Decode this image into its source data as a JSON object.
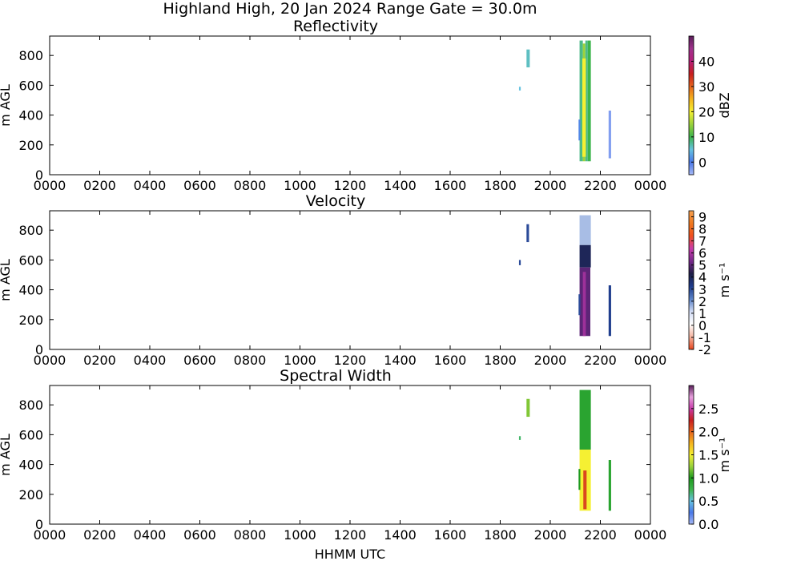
{
  "figure": {
    "title": "Highland High, 20 Jan 2024 Range Gate = 30.0m",
    "xlabel": "HHMM UTC"
  },
  "chart_data": [
    {
      "type": "heatmap",
      "title": "Reflectivity",
      "ylabel": "m AGL",
      "xlim": [
        0,
        2400
      ],
      "ylim": [
        0,
        930
      ],
      "xticks": [
        "0000",
        "0200",
        "0400",
        "0600",
        "0800",
        "1000",
        "1200",
        "1400",
        "1600",
        "1800",
        "2000",
        "2200",
        "0000"
      ],
      "yticks": [
        0,
        200,
        400,
        600,
        800
      ],
      "colorbar": {
        "label": "dBZ",
        "range": [
          -5,
          50
        ],
        "ticks": [
          0,
          10,
          20,
          30,
          40
        ],
        "stops": [
          "#a6b8f5",
          "#4a78e8",
          "#66c2e0",
          "#3cb44b",
          "#9ad23c",
          "#f5f032",
          "#f5b41e",
          "#e6641e",
          "#c81e1e",
          "#b41e78",
          "#a0328c",
          "#5a1e5a"
        ]
      },
      "cells": [
        {
          "t0": 1875,
          "t1": 1882,
          "h0": 565,
          "h1": 590,
          "v": 5
        },
        {
          "t0": 1905,
          "t1": 1918,
          "h0": 720,
          "h1": 840,
          "v": 6
        },
        {
          "t0": 2117,
          "t1": 2130,
          "h0": 90,
          "h1": 900,
          "v": 8
        },
        {
          "t0": 2130,
          "t1": 2140,
          "h0": 90,
          "h1": 880,
          "v": 15
        },
        {
          "t0": 2140,
          "t1": 2150,
          "h0": 90,
          "h1": 900,
          "v": 8
        },
        {
          "t0": 2150,
          "t1": 2162,
          "h0": 90,
          "h1": 900,
          "v": 10
        },
        {
          "t0": 2128,
          "t1": 2142,
          "h0": 120,
          "h1": 780,
          "v": 20
        },
        {
          "t0": 2113,
          "t1": 2120,
          "h0": 230,
          "h1": 370,
          "v": 1
        },
        {
          "t0": 2233,
          "t1": 2243,
          "h0": 110,
          "h1": 430,
          "v": -3
        }
      ]
    },
    {
      "type": "heatmap",
      "title": "Velocity",
      "ylabel": "m AGL",
      "xlim": [
        0,
        2400
      ],
      "ylim": [
        0,
        930
      ],
      "xticks": [
        "0000",
        "0200",
        "0400",
        "0600",
        "0800",
        "1000",
        "1200",
        "1400",
        "1600",
        "1800",
        "2000",
        "2200",
        "0000"
      ],
      "yticks": [
        0,
        200,
        400,
        600,
        800
      ],
      "colorbar": {
        "label": "m s⁻¹",
        "range": [
          -2,
          9.5
        ],
        "ticks": [
          -2,
          -1,
          0,
          1,
          2,
          3,
          4,
          5,
          6,
          7,
          8,
          9
        ],
        "stops": [
          "#e6461e",
          "#f5b4a0",
          "#ffffff",
          "#d2dcf5",
          "#5a82c8",
          "#1e3c8c",
          "#1e1e46",
          "#78288c",
          "#c83caa",
          "#f0501e",
          "#f0781e",
          "#f5a050"
        ]
      },
      "cells": [
        {
          "t0": 1875,
          "t1": 1882,
          "h0": 565,
          "h1": 600,
          "v": 3
        },
        {
          "t0": 1905,
          "t1": 1915,
          "h0": 720,
          "h1": 840,
          "v": 3
        },
        {
          "t0": 2117,
          "t1": 2162,
          "h0": 700,
          "h1": 900,
          "v": 1.5
        },
        {
          "t0": 2117,
          "t1": 2162,
          "h0": 550,
          "h1": 700,
          "v": 4
        },
        {
          "t0": 2117,
          "t1": 2160,
          "h0": 90,
          "h1": 550,
          "v": 5
        },
        {
          "t0": 2130,
          "t1": 2142,
          "h0": 90,
          "h1": 520,
          "v": 5.8
        },
        {
          "t0": 2113,
          "t1": 2120,
          "h0": 230,
          "h1": 370,
          "v": 3
        },
        {
          "t0": 2233,
          "t1": 2243,
          "h0": 90,
          "h1": 430,
          "v": 3.2
        }
      ]
    },
    {
      "type": "heatmap",
      "title": "Spectral Width",
      "ylabel": "m AGL",
      "xlim": [
        0,
        2400
      ],
      "ylim": [
        0,
        930
      ],
      "xticks": [
        "0000",
        "0200",
        "0400",
        "0600",
        "0800",
        "1000",
        "1200",
        "1400",
        "1600",
        "1800",
        "2000",
        "2200",
        "0000"
      ],
      "yticks": [
        0,
        200,
        400,
        600,
        800
      ],
      "colorbar": {
        "label": "m s⁻¹",
        "range": [
          0,
          3
        ],
        "ticks": [
          0.0,
          0.5,
          1.0,
          1.5,
          2.0,
          2.5
        ],
        "stops": [
          "#a6b8f5",
          "#4a78e8",
          "#66c2e0",
          "#3cb44b",
          "#1e9a1e",
          "#9ad23c",
          "#f5f032",
          "#f5b41e",
          "#e6641e",
          "#c81e1e",
          "#c83caa",
          "#e6a0dc",
          "#5a1e5a"
        ]
      },
      "cells": [
        {
          "t0": 1875,
          "t1": 1882,
          "h0": 565,
          "h1": 590,
          "v": 0.7
        },
        {
          "t0": 1905,
          "t1": 1918,
          "h0": 720,
          "h1": 840,
          "v": 1.2
        },
        {
          "t0": 2117,
          "t1": 2162,
          "h0": 500,
          "h1": 900,
          "v": 0.9
        },
        {
          "t0": 2117,
          "t1": 2162,
          "h0": 90,
          "h1": 500,
          "v": 1.5
        },
        {
          "t0": 2132,
          "t1": 2145,
          "h0": 100,
          "h1": 360,
          "v": 2.1
        },
        {
          "t0": 2113,
          "t1": 2120,
          "h0": 230,
          "h1": 370,
          "v": 1.0
        },
        {
          "t0": 2233,
          "t1": 2243,
          "h0": 90,
          "h1": 430,
          "v": 0.9
        }
      ]
    }
  ]
}
